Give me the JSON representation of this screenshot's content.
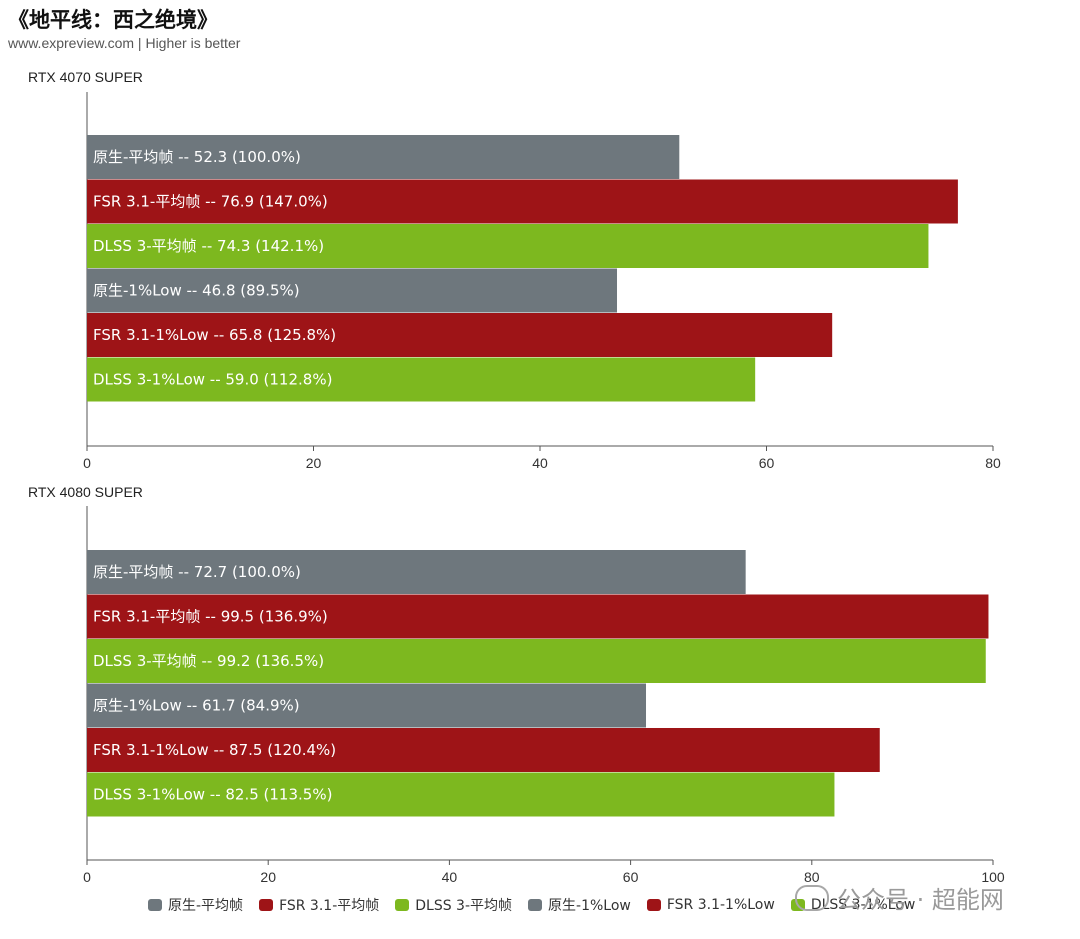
{
  "title": "《地平线：西之绝境》",
  "subtitle": "www.expreview.com | Higher is better",
  "colors": {
    "native": "#6e777d",
    "fsr": "#9e1417",
    "dlss": "#7db81f"
  },
  "legend": [
    {
      "label": "原生-平均帧",
      "color": "#6e777d"
    },
    {
      "label": "FSR 3.1-平均帧",
      "color": "#9e1417"
    },
    {
      "label": "DLSS 3-平均帧",
      "color": "#7db81f"
    },
    {
      "label": "原生-1%Low",
      "color": "#6e777d"
    },
    {
      "label": "FSR 3.1-1%Low",
      "color": "#9e1417"
    },
    {
      "label": "DLSS 3-1%Low",
      "color": "#7db81f"
    }
  ],
  "watermark": "公众号 · 超能网",
  "chart_data": [
    {
      "type": "bar",
      "orientation": "horizontal",
      "panel_title": "RTX 4070 SUPER",
      "xlim": [
        0,
        80
      ],
      "xticks": [
        0,
        20,
        40,
        60,
        80
      ],
      "bars": [
        {
          "label": "原生-平均帧  --  52.3 (100.0%)",
          "value": 52.3,
          "color": "#6e777d"
        },
        {
          "label": "FSR 3.1-平均帧  --  76.9 (147.0%)",
          "value": 76.9,
          "color": "#9e1417"
        },
        {
          "label": "DLSS 3-平均帧  --  74.3 (142.1%)",
          "value": 74.3,
          "color": "#7db81f"
        },
        {
          "label": "原生-1%Low  --  46.8 (89.5%)",
          "value": 46.8,
          "color": "#6e777d"
        },
        {
          "label": "FSR 3.1-1%Low  --  65.8 (125.8%)",
          "value": 65.8,
          "color": "#9e1417"
        },
        {
          "label": "DLSS 3-1%Low  --  59.0 (112.8%)",
          "value": 59.0,
          "color": "#7db81f"
        }
      ]
    },
    {
      "type": "bar",
      "orientation": "horizontal",
      "panel_title": "RTX 4080 SUPER",
      "xlim": [
        0,
        100
      ],
      "xticks": [
        0,
        20,
        40,
        60,
        80,
        100
      ],
      "bars": [
        {
          "label": "原生-平均帧  --  72.7 (100.0%)",
          "value": 72.7,
          "color": "#6e777d"
        },
        {
          "label": "FSR 3.1-平均帧  --  99.5 (136.9%)",
          "value": 99.5,
          "color": "#9e1417"
        },
        {
          "label": "DLSS 3-平均帧  --  99.2 (136.5%)",
          "value": 99.2,
          "color": "#7db81f"
        },
        {
          "label": "原生-1%Low  --  61.7 (84.9%)",
          "value": 61.7,
          "color": "#6e777d"
        },
        {
          "label": "FSR 3.1-1%Low  --  87.5 (120.4%)",
          "value": 87.5,
          "color": "#9e1417"
        },
        {
          "label": "DLSS 3-1%Low  --  82.5 (113.5%)",
          "value": 82.5,
          "color": "#7db81f"
        }
      ]
    }
  ]
}
